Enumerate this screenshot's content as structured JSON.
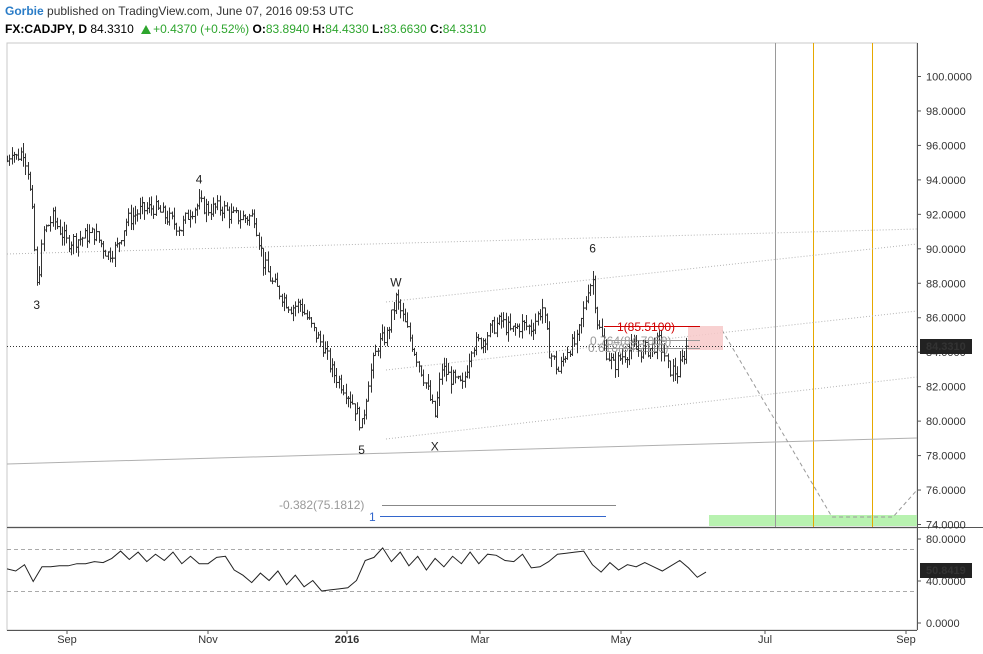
{
  "header": {
    "author": "Gorbie",
    "published_text": "published on TradingView.com, June 07, 2016 09:53 UTC",
    "symbol": "FX:CADJPY, D",
    "last": "84.3310",
    "change": "+0.4370 (+0.52%)",
    "o_label": "O:",
    "o_value": "83.8940",
    "h_label": "H:",
    "h_value": "84.4330",
    "l_label": "L:",
    "l_value": "83.6630",
    "c_label": "C:",
    "c_value": "84.3310"
  },
  "colors": {
    "bars": "#333333",
    "up": "#2ea52e",
    "fib_red": "#d00000",
    "fib_grey": "#999999",
    "orange_line": "#e6a800",
    "target_zone": "#b8f2b0",
    "fib_blue": "#3366cc"
  },
  "chart_data": [
    {
      "type": "line",
      "title": "FX:CADJPY, D",
      "series": [
        {
          "values": [
            {
              "x": "2016-08-15",
              "y": 95.1
            },
            {
              "x": "2016-08-17",
              "y": 95.8
            },
            {
              "x": "2016-08-19",
              "y": 95.3
            },
            {
              "x": "2016-08-22",
              "y": 95.7
            },
            {
              "x": "2016-08-24",
              "y": 94.6
            },
            {
              "x": "2016-08-26",
              "y": 92.0
            },
            {
              "x": "2016-08-28",
              "y": 87.8
            },
            {
              "x": "2016-08-31",
              "y": 91.0
            },
            {
              "x": "2016-09-04",
              "y": 91.8
            },
            {
              "x": "2016-09-10",
              "y": 90.4
            },
            {
              "x": "2016-09-16",
              "y": 90.6
            },
            {
              "x": "2016-09-22",
              "y": 90.9
            },
            {
              "x": "2016-09-28",
              "y": 89.7
            },
            {
              "x": "2016-10-02",
              "y": 90.1
            },
            {
              "x": "2016-10-06",
              "y": 91.6
            },
            {
              "x": "2016-10-12",
              "y": 92.2
            },
            {
              "x": "2016-10-18",
              "y": 92.4
            },
            {
              "x": "2016-10-24",
              "y": 91.8
            },
            {
              "x": "2016-10-30",
              "y": 91.2
            },
            {
              "x": "2016-11-03",
              "y": 92.2
            },
            {
              "x": "2016-11-07",
              "y": 92.6
            },
            {
              "x": "2016-11-11",
              "y": 92.3
            },
            {
              "x": "2016-11-17",
              "y": 92.4
            },
            {
              "x": "2016-11-21",
              "y": 91.9
            },
            {
              "x": "2016-11-27",
              "y": 91.8
            },
            {
              "x": "2016-12-01",
              "y": 91.9
            },
            {
              "x": "2016-12-05",
              "y": 89.2
            },
            {
              "x": "2016-12-09",
              "y": 88.0
            },
            {
              "x": "2016-12-13",
              "y": 87.3
            },
            {
              "x": "2016-12-17",
              "y": 86.6
            },
            {
              "x": "2016-12-21",
              "y": 86.8
            },
            {
              "x": "2016-12-27",
              "y": 85.2
            },
            {
              "x": "2016-12-31",
              "y": 84.4
            },
            {
              "x": "2016-01-04",
              "y": 82.9
            },
            {
              "x": "2016-01-09",
              "y": 82.0
            },
            {
              "x": "2016-01-13",
              "y": 81.1
            },
            {
              "x": "2016-01-17",
              "y": 79.7
            },
            {
              "x": "2016-01-20",
              "y": 82.4
            },
            {
              "x": "2016-01-24",
              "y": 84.4
            },
            {
              "x": "2016-01-28",
              "y": 85.0
            },
            {
              "x": "2016-02-01",
              "y": 87.1
            },
            {
              "x": "2016-02-05",
              "y": 85.6
            },
            {
              "x": "2016-02-09",
              "y": 84.1
            },
            {
              "x": "2016-02-14",
              "y": 82.2
            },
            {
              "x": "2016-02-18",
              "y": 80.3
            },
            {
              "x": "2016-02-21",
              "y": 83.1
            },
            {
              "x": "2016-02-25",
              "y": 82.5
            },
            {
              "x": "2016-03-01",
              "y": 82.0
            },
            {
              "x": "2016-03-05",
              "y": 84.4
            },
            {
              "x": "2016-03-09",
              "y": 84.6
            },
            {
              "x": "2016-03-14",
              "y": 85.4
            },
            {
              "x": "2016-03-18",
              "y": 85.8
            },
            {
              "x": "2016-03-22",
              "y": 85.2
            },
            {
              "x": "2016-03-27",
              "y": 85.6
            },
            {
              "x": "2016-03-31",
              "y": 85.4
            },
            {
              "x": "2016-04-05",
              "y": 86.6
            },
            {
              "x": "2016-04-08",
              "y": 84.1
            },
            {
              "x": "2016-04-12",
              "y": 82.9
            },
            {
              "x": "2016-04-16",
              "y": 84.2
            },
            {
              "x": "2016-04-20",
              "y": 84.6
            },
            {
              "x": "2016-04-23",
              "y": 86.4
            },
            {
              "x": "2016-04-25",
              "y": 87.8
            },
            {
              "x": "2016-04-27",
              "y": 88.2
            },
            {
              "x": "2016-04-29",
              "y": 85.8
            },
            {
              "x": "2016-05-02",
              "y": 84.3
            },
            {
              "x": "2016-05-06",
              "y": 83.2
            },
            {
              "x": "2016-05-10",
              "y": 83.8
            },
            {
              "x": "2016-05-14",
              "y": 84.2
            },
            {
              "x": "2016-05-18",
              "y": 84.1
            },
            {
              "x": "2016-05-22",
              "y": 84.2
            },
            {
              "x": "2016-05-26",
              "y": 84.6
            },
            {
              "x": "2016-05-30",
              "y": 83.1
            },
            {
              "x": "2016-06-03",
              "y": 82.8
            },
            {
              "x": "2016-06-06",
              "y": 83.9
            },
            {
              "x": "2016-06-07",
              "y": 84.3
            }
          ]
        }
      ],
      "x_tick_labels": [
        "Sep",
        "Nov",
        "2016",
        "Mar",
        "May",
        "Jul",
        "Sep"
      ],
      "y_tick_labels": [
        "100.0000",
        "98.0000",
        "96.0000",
        "94.0000",
        "92.0000",
        "90.0000",
        "88.0000",
        "86.0000",
        "84.0000",
        "82.0000",
        "80.0000",
        "78.0000",
        "76.0000",
        "74.0000"
      ],
      "ylim": [
        73.9,
        101.1
      ],
      "last_price_label": "84.3310",
      "wave_labels": [
        {
          "text": "3",
          "x": "2016-08-28",
          "y": 86.5
        },
        {
          "text": "4",
          "x": "2016-11-07",
          "y": 93.8
        },
        {
          "text": "5",
          "x": "2016-01-17",
          "y": 78.1
        },
        {
          "text": "W",
          "x": "2016-02-01",
          "y": 87.8
        },
        {
          "text": "X",
          "x": "2016-02-18",
          "y": 78.3
        },
        {
          "text": "6",
          "x": "2016-04-27",
          "y": 89.8
        }
      ],
      "fib_labels": [
        {
          "text": "1(85.5100)",
          "color": "red"
        },
        {
          "text": "0.764(84.7069)",
          "color": "grey"
        },
        {
          "text": "0.618(84.2110)",
          "color": "grey"
        },
        {
          "text": "-0.382(75.1812)",
          "color": "grey"
        },
        {
          "text": "1",
          "color": "blue"
        }
      ],
      "grid": false
    },
    {
      "type": "line",
      "series": [
        {
          "values": [
            53,
            48,
            57,
            38,
            55,
            52,
            56,
            53,
            58,
            55,
            60,
            56,
            63,
            67,
            62,
            66,
            60,
            64,
            61,
            66,
            58,
            62,
            58,
            55,
            64,
            62,
            52,
            44,
            40,
            46,
            42,
            48,
            38,
            44,
            36,
            39,
            32,
            30,
            34,
            32,
            42,
            58,
            64,
            70,
            60,
            66,
            56,
            62,
            52,
            60,
            55,
            62,
            58,
            66,
            58,
            64,
            66,
            58,
            60,
            64,
            54,
            52,
            60,
            64,
            68,
            66,
            70,
            54,
            50,
            56,
            52,
            54,
            55,
            56,
            55,
            48,
            56,
            58,
            54,
            42,
            50
          ]
        }
      ],
      "y_tick_labels": [
        "80.0000",
        "40.0000",
        "0.0000"
      ],
      "ylim": [
        -3,
        83
      ],
      "last_value_label": "50.8419",
      "grid": false
    }
  ]
}
